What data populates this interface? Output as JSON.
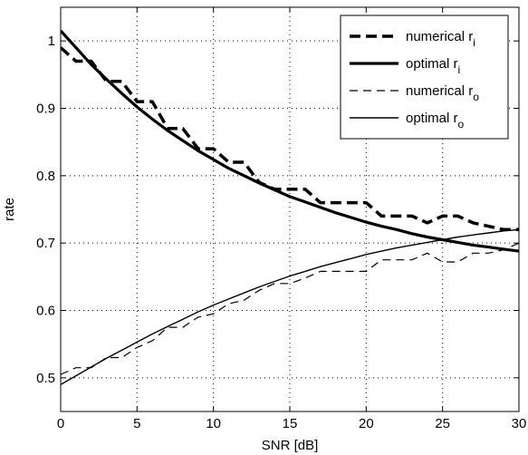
{
  "chart_data": {
    "type": "line",
    "xlabel": "SNR [dB]",
    "ylabel": "rate",
    "xlim": [
      0,
      30
    ],
    "ylim": [
      0.45,
      1.05
    ],
    "x_ticks": [
      0,
      5,
      10,
      15,
      20,
      25,
      30
    ],
    "y_ticks": [
      0.5,
      0.6,
      0.7,
      0.8,
      0.9,
      1.0
    ],
    "x_tick_labels": [
      "0",
      "5",
      "10",
      "15",
      "20",
      "25",
      "30"
    ],
    "y_tick_labels": [
      "0.5",
      "0.6",
      "0.7",
      "0.8",
      "0.9",
      "1"
    ],
    "grid": true,
    "legend_position": "top-right",
    "series": [
      {
        "name": "numerical r",
        "name_sub": "i",
        "style": "dashed-thick",
        "x": [
          0,
          1,
          2,
          3,
          4,
          5,
          6,
          7,
          8,
          9,
          10,
          11,
          12,
          13,
          14,
          15,
          16,
          17,
          18,
          19,
          20,
          21,
          22,
          23,
          24,
          25,
          26,
          27,
          28,
          29,
          30
        ],
        "y": [
          0.99,
          0.97,
          0.97,
          0.94,
          0.94,
          0.91,
          0.91,
          0.87,
          0.87,
          0.84,
          0.84,
          0.82,
          0.82,
          0.79,
          0.78,
          0.78,
          0.78,
          0.76,
          0.76,
          0.76,
          0.76,
          0.74,
          0.74,
          0.74,
          0.73,
          0.74,
          0.74,
          0.73,
          0.725,
          0.72,
          0.72
        ]
      },
      {
        "name": "optimal r",
        "name_sub": "i",
        "style": "solid-thick",
        "x": [
          0,
          1,
          2,
          3,
          4,
          5,
          6,
          7,
          8,
          9,
          10,
          11,
          12,
          13,
          14,
          15,
          16,
          17,
          18,
          19,
          20,
          21,
          22,
          23,
          24,
          25,
          26,
          27,
          28,
          29,
          30
        ],
        "y": [
          1.015,
          0.99,
          0.965,
          0.943,
          0.922,
          0.902,
          0.884,
          0.867,
          0.852,
          0.837,
          0.824,
          0.811,
          0.8,
          0.789,
          0.779,
          0.769,
          0.761,
          0.753,
          0.745,
          0.738,
          0.731,
          0.725,
          0.72,
          0.714,
          0.709,
          0.705,
          0.701,
          0.697,
          0.694,
          0.691,
          0.688
        ]
      },
      {
        "name": "numerical r",
        "name_sub": "o",
        "style": "dashed-thin",
        "x": [
          0,
          1,
          2,
          3,
          4,
          5,
          6,
          7,
          8,
          9,
          10,
          11,
          12,
          13,
          14,
          15,
          16,
          17,
          18,
          19,
          20,
          21,
          22,
          23,
          24,
          25,
          26,
          27,
          28,
          29,
          30
        ],
        "y": [
          0.505,
          0.515,
          0.515,
          0.53,
          0.53,
          0.545,
          0.555,
          0.575,
          0.575,
          0.59,
          0.595,
          0.61,
          0.615,
          0.63,
          0.64,
          0.64,
          0.648,
          0.658,
          0.658,
          0.658,
          0.658,
          0.675,
          0.675,
          0.675,
          0.685,
          0.672,
          0.672,
          0.685,
          0.685,
          0.69,
          0.7
        ]
      },
      {
        "name": "optimal r",
        "name_sub": "o",
        "style": "solid-thin",
        "x": [
          0,
          1,
          2,
          3,
          4,
          5,
          6,
          7,
          8,
          9,
          10,
          11,
          12,
          13,
          14,
          15,
          16,
          17,
          18,
          19,
          20,
          21,
          22,
          23,
          24,
          25,
          26,
          27,
          28,
          29,
          30
        ],
        "y": [
          0.49,
          0.503,
          0.516,
          0.529,
          0.541,
          0.553,
          0.565,
          0.576,
          0.587,
          0.598,
          0.608,
          0.617,
          0.626,
          0.635,
          0.643,
          0.651,
          0.658,
          0.665,
          0.671,
          0.677,
          0.683,
          0.688,
          0.693,
          0.697,
          0.701,
          0.705,
          0.709,
          0.712,
          0.715,
          0.718,
          0.72
        ]
      }
    ]
  }
}
